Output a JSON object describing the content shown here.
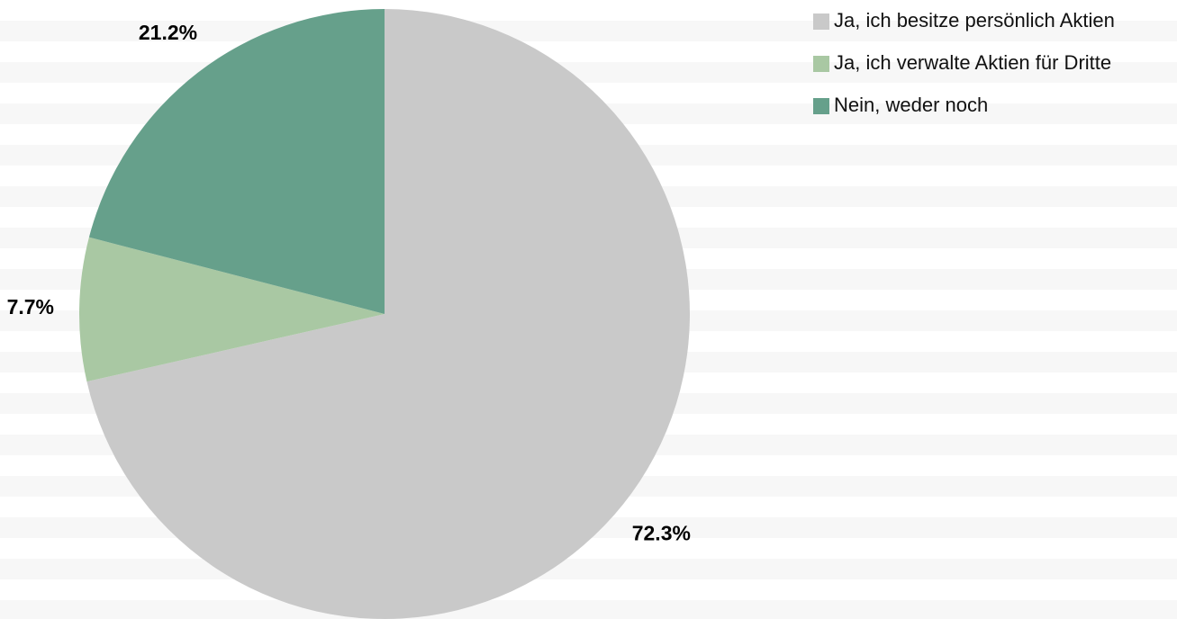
{
  "chart_data": {
    "type": "pie",
    "categories": [
      "Ja, ich besitze persönlich Aktien",
      "Ja, ich verwalte Aktien für Dritte",
      "Nein, weder noch"
    ],
    "values": [
      72.3,
      7.7,
      21.2
    ],
    "value_labels": [
      "72.3%",
      "7.7%",
      "21.2%"
    ],
    "colors": [
      "#c9c9c9",
      "#a9c8a3",
      "#66a08b"
    ],
    "legend": "top-right"
  }
}
